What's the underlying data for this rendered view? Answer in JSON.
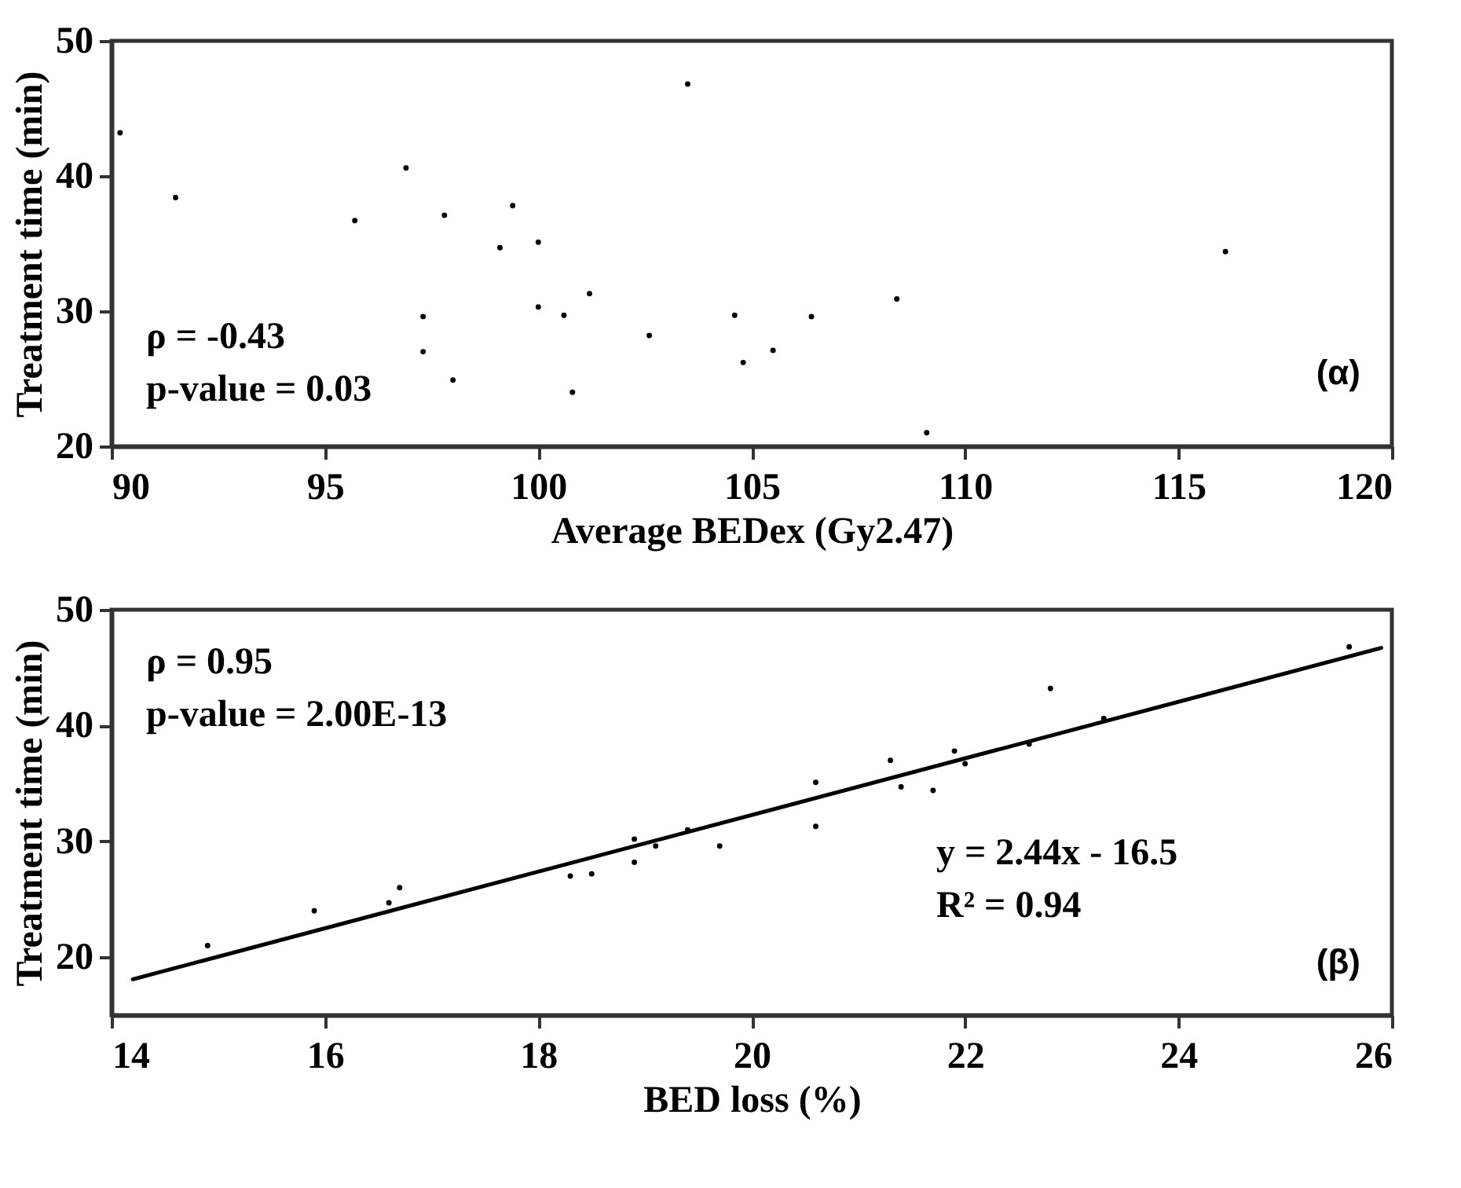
{
  "chart_data": [
    {
      "type": "scatter",
      "xlabel": "Average BEDex (Gy2.47)",
      "ylabel": "Treatment time (min)",
      "xlim": [
        90,
        120
      ],
      "xticks": [
        90,
        95,
        100,
        105,
        110,
        115,
        120
      ],
      "ylim": [
        20,
        50
      ],
      "yticks": [
        20,
        30,
        40,
        50
      ],
      "grid": false,
      "marker": "circle",
      "annotations": [
        "ρ = -0.43",
        "p-value = 0.03",
        "(α)"
      ],
      "series": [
        {
          "color": "#000000",
          "x": [
            90.2,
            91.5,
            95.7,
            96.9,
            97.8,
            99.1,
            99.4,
            100.0,
            100.0,
            100.6,
            101.2,
            97.3,
            97.3,
            98.0,
            100.8,
            102.6,
            103.5,
            104.6,
            104.8,
            105.5,
            106.4,
            108.4,
            109.1,
            116.1
          ],
          "values": [
            43.2,
            38.4,
            36.7,
            40.6,
            37.1,
            34.7,
            37.8,
            35.1,
            30.3,
            29.7,
            31.3,
            29.6,
            27.0,
            24.9,
            24.0,
            28.2,
            46.8,
            29.7,
            26.2,
            27.1,
            29.6,
            30.9,
            21.0,
            34.4
          ]
        }
      ]
    },
    {
      "type": "scatter",
      "xlabel": "BED loss (%)",
      "ylabel": "Treatment time (min)",
      "xlim": [
        14,
        26
      ],
      "xticks": [
        14,
        16,
        18,
        20,
        22,
        24,
        26
      ],
      "ylim": [
        15,
        50
      ],
      "yticks": [
        20,
        30,
        40,
        50
      ],
      "grid": false,
      "annotations": [
        "ρ = 0.95",
        "p-value = 2.00E-13",
        "y = 2.44x - 16.5",
        "R² = 0.94",
        "(β)"
      ],
      "series": [
        {
          "color": "#000000",
          "marker": "circle",
          "x": [
            14.9,
            15.9,
            16.6,
            16.7,
            18.3,
            18.5,
            18.9,
            18.9,
            19.1,
            19.4,
            19.7,
            20.6,
            20.6,
            21.3,
            21.4,
            21.7,
            21.9,
            22.0,
            22.6,
            22.8,
            23.3,
            25.6
          ],
          "values": [
            21.0,
            24.0,
            24.7,
            26.0,
            27.0,
            27.2,
            28.2,
            30.2,
            29.6,
            31.0,
            29.6,
            35.1,
            31.3,
            37.0,
            34.7,
            34.4,
            37.8,
            36.7,
            38.4,
            43.2,
            40.6,
            46.8
          ]
        },
        {
          "type": "line",
          "color": "#000000",
          "marker": "none",
          "line_style": "solid",
          "x": [
            14.2,
            25.9
          ],
          "values": [
            18.1,
            46.7
          ]
        }
      ]
    }
  ]
}
